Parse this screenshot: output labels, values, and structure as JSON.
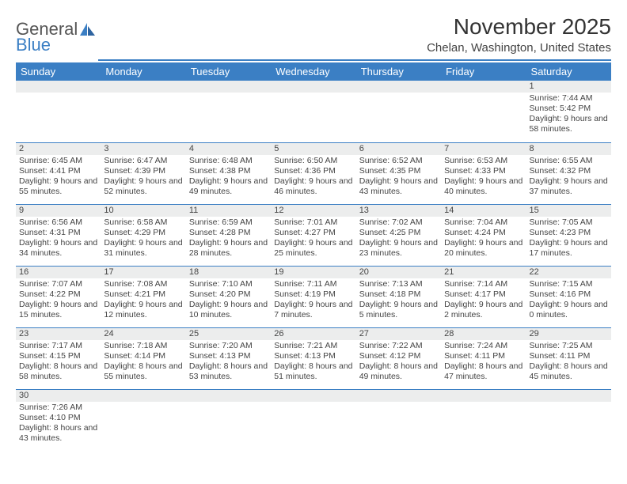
{
  "logo": {
    "text1": "General",
    "text2": "Blue",
    "color_general": "#666666",
    "color_blue": "#3b7fc4"
  },
  "title": "November 2025",
  "location": "Chelan, Washington, United States",
  "colors": {
    "header_bg": "#3b7fc4",
    "daynum_bg": "#eceded",
    "rule": "#3b7fc4"
  },
  "day_headers": [
    "Sunday",
    "Monday",
    "Tuesday",
    "Wednesday",
    "Thursday",
    "Friday",
    "Saturday"
  ],
  "weeks": [
    [
      null,
      null,
      null,
      null,
      null,
      null,
      {
        "n": "1",
        "sunrise": "7:44 AM",
        "sunset": "5:42 PM",
        "daylight": "9 hours and 58 minutes."
      }
    ],
    [
      {
        "n": "2",
        "sunrise": "6:45 AM",
        "sunset": "4:41 PM",
        "daylight": "9 hours and 55 minutes."
      },
      {
        "n": "3",
        "sunrise": "6:47 AM",
        "sunset": "4:39 PM",
        "daylight": "9 hours and 52 minutes."
      },
      {
        "n": "4",
        "sunrise": "6:48 AM",
        "sunset": "4:38 PM",
        "daylight": "9 hours and 49 minutes."
      },
      {
        "n": "5",
        "sunrise": "6:50 AM",
        "sunset": "4:36 PM",
        "daylight": "9 hours and 46 minutes."
      },
      {
        "n": "6",
        "sunrise": "6:52 AM",
        "sunset": "4:35 PM",
        "daylight": "9 hours and 43 minutes."
      },
      {
        "n": "7",
        "sunrise": "6:53 AM",
        "sunset": "4:33 PM",
        "daylight": "9 hours and 40 minutes."
      },
      {
        "n": "8",
        "sunrise": "6:55 AM",
        "sunset": "4:32 PM",
        "daylight": "9 hours and 37 minutes."
      }
    ],
    [
      {
        "n": "9",
        "sunrise": "6:56 AM",
        "sunset": "4:31 PM",
        "daylight": "9 hours and 34 minutes."
      },
      {
        "n": "10",
        "sunrise": "6:58 AM",
        "sunset": "4:29 PM",
        "daylight": "9 hours and 31 minutes."
      },
      {
        "n": "11",
        "sunrise": "6:59 AM",
        "sunset": "4:28 PM",
        "daylight": "9 hours and 28 minutes."
      },
      {
        "n": "12",
        "sunrise": "7:01 AM",
        "sunset": "4:27 PM",
        "daylight": "9 hours and 25 minutes."
      },
      {
        "n": "13",
        "sunrise": "7:02 AM",
        "sunset": "4:25 PM",
        "daylight": "9 hours and 23 minutes."
      },
      {
        "n": "14",
        "sunrise": "7:04 AM",
        "sunset": "4:24 PM",
        "daylight": "9 hours and 20 minutes."
      },
      {
        "n": "15",
        "sunrise": "7:05 AM",
        "sunset": "4:23 PM",
        "daylight": "9 hours and 17 minutes."
      }
    ],
    [
      {
        "n": "16",
        "sunrise": "7:07 AM",
        "sunset": "4:22 PM",
        "daylight": "9 hours and 15 minutes."
      },
      {
        "n": "17",
        "sunrise": "7:08 AM",
        "sunset": "4:21 PM",
        "daylight": "9 hours and 12 minutes."
      },
      {
        "n": "18",
        "sunrise": "7:10 AM",
        "sunset": "4:20 PM",
        "daylight": "9 hours and 10 minutes."
      },
      {
        "n": "19",
        "sunrise": "7:11 AM",
        "sunset": "4:19 PM",
        "daylight": "9 hours and 7 minutes."
      },
      {
        "n": "20",
        "sunrise": "7:13 AM",
        "sunset": "4:18 PM",
        "daylight": "9 hours and 5 minutes."
      },
      {
        "n": "21",
        "sunrise": "7:14 AM",
        "sunset": "4:17 PM",
        "daylight": "9 hours and 2 minutes."
      },
      {
        "n": "22",
        "sunrise": "7:15 AM",
        "sunset": "4:16 PM",
        "daylight": "9 hours and 0 minutes."
      }
    ],
    [
      {
        "n": "23",
        "sunrise": "7:17 AM",
        "sunset": "4:15 PM",
        "daylight": "8 hours and 58 minutes."
      },
      {
        "n": "24",
        "sunrise": "7:18 AM",
        "sunset": "4:14 PM",
        "daylight": "8 hours and 55 minutes."
      },
      {
        "n": "25",
        "sunrise": "7:20 AM",
        "sunset": "4:13 PM",
        "daylight": "8 hours and 53 minutes."
      },
      {
        "n": "26",
        "sunrise": "7:21 AM",
        "sunset": "4:13 PM",
        "daylight": "8 hours and 51 minutes."
      },
      {
        "n": "27",
        "sunrise": "7:22 AM",
        "sunset": "4:12 PM",
        "daylight": "8 hours and 49 minutes."
      },
      {
        "n": "28",
        "sunrise": "7:24 AM",
        "sunset": "4:11 PM",
        "daylight": "8 hours and 47 minutes."
      },
      {
        "n": "29",
        "sunrise": "7:25 AM",
        "sunset": "4:11 PM",
        "daylight": "8 hours and 45 minutes."
      }
    ],
    [
      {
        "n": "30",
        "sunrise": "7:26 AM",
        "sunset": "4:10 PM",
        "daylight": "8 hours and 43 minutes."
      },
      null,
      null,
      null,
      null,
      null,
      null
    ]
  ],
  "labels": {
    "sunrise": "Sunrise: ",
    "sunset": "Sunset: ",
    "daylight": "Daylight: "
  }
}
